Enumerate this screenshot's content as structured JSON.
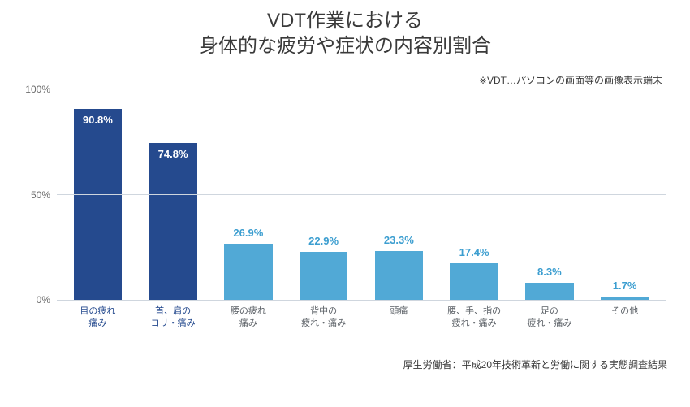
{
  "title_line1": "VDT作業における",
  "title_line2": "身体的な疲労や症状の内容別割合",
  "note_text": "※VDT…パソコンの画面等の画像表示端末",
  "source_text": "厚生労働省：平成20年技術革新と労働に関する実態調査結果",
  "chart": {
    "type": "bar",
    "ylim": [
      0,
      100
    ],
    "yticks": [
      0,
      50,
      100
    ],
    "ytick_labels": [
      "0%",
      "50%",
      "100%"
    ],
    "grid_color": "#cfd6de",
    "background_color": "#ffffff",
    "axis_label_color": "#6b6b6b",
    "colors": {
      "highlight": "#254a8e",
      "normal": "#51a9d6",
      "value_label_above": "#3c9ed0",
      "value_label_inside": "#ffffff",
      "category_highlight": "#254a8e",
      "category_normal": "#5b6066"
    },
    "bar_width_ratio": 0.64,
    "label_fontsize": 13,
    "category_fontsize": 11,
    "data": [
      {
        "category": "目の疲れ\n痛み",
        "value": 90.8,
        "label": "90.8%",
        "highlight": true,
        "label_inside": true
      },
      {
        "category": "首、肩の\nコリ・痛み",
        "value": 74.8,
        "label": "74.8%",
        "highlight": true,
        "label_inside": true
      },
      {
        "category": "腰の疲れ\n痛み",
        "value": 26.9,
        "label": "26.9%",
        "highlight": false,
        "label_inside": false
      },
      {
        "category": "背中の\n疲れ・痛み",
        "value": 22.9,
        "label": "22.9%",
        "highlight": false,
        "label_inside": false
      },
      {
        "category": "頭痛",
        "value": 23.3,
        "label": "23.3%",
        "highlight": false,
        "label_inside": false
      },
      {
        "category": "腰、手、指の\n疲れ・痛み",
        "value": 17.4,
        "label": "17.4%",
        "highlight": false,
        "label_inside": false
      },
      {
        "category": "足の\n疲れ・痛み",
        "value": 8.3,
        "label": "8.3%",
        "highlight": false,
        "label_inside": false
      },
      {
        "category": "その他",
        "value": 1.7,
        "label": "1.7%",
        "highlight": false,
        "label_inside": false
      }
    ]
  }
}
